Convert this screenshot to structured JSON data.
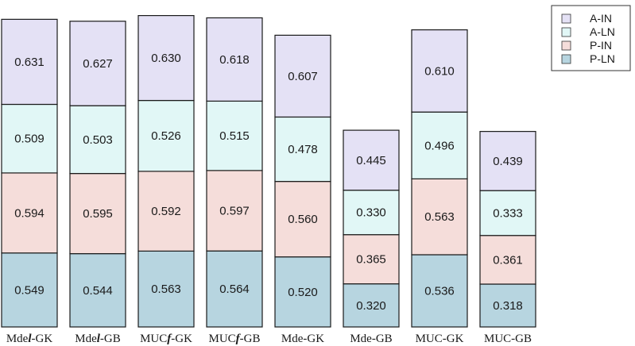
{
  "chart_data": {
    "type": "bar",
    "stacked": true,
    "categories": [
      "Mdel-GK",
      "Mdel-GB",
      "MUCf-GK",
      "MUCf-GB",
      "Mde-GK",
      "Mde-GB",
      "MUC-GK",
      "MUC-GB"
    ],
    "category_parts": [
      [
        "Mde",
        "l",
        "-GK"
      ],
      [
        "Mde",
        "l",
        "-GB"
      ],
      [
        "MUC",
        "f",
        "-GK"
      ],
      [
        "MUC",
        "f",
        "-GB"
      ],
      [
        "Mde-GK",
        "",
        ""
      ],
      [
        "Mde-GB",
        "",
        ""
      ],
      [
        "MUC-GK",
        "",
        ""
      ],
      [
        "MUC-GB",
        "",
        ""
      ]
    ],
    "series": [
      {
        "name": "P-LN",
        "color": "#b7d5e0",
        "values": [
          0.549,
          0.544,
          0.563,
          0.564,
          0.52,
          0.32,
          0.536,
          0.318
        ]
      },
      {
        "name": "P-IN",
        "color": "#f5ddda",
        "values": [
          0.594,
          0.595,
          0.592,
          0.597,
          0.56,
          0.365,
          0.563,
          0.361
        ]
      },
      {
        "name": "A-LN",
        "color": "#e1f7f6",
        "values": [
          0.509,
          0.503,
          0.526,
          0.515,
          0.478,
          0.33,
          0.496,
          0.333
        ]
      },
      {
        "name": "A-IN",
        "color": "#e4e1f5",
        "values": [
          0.631,
          0.627,
          0.63,
          0.618,
          0.607,
          0.445,
          0.61,
          0.439
        ]
      }
    ],
    "legend_order": [
      "A-IN",
      "A-LN",
      "P-IN",
      "P-LN"
    ],
    "ylim": [
      0,
      2.45
    ],
    "legend_position": "top-right",
    "grid": false,
    "title": "",
    "xlabel": "",
    "ylabel": ""
  }
}
